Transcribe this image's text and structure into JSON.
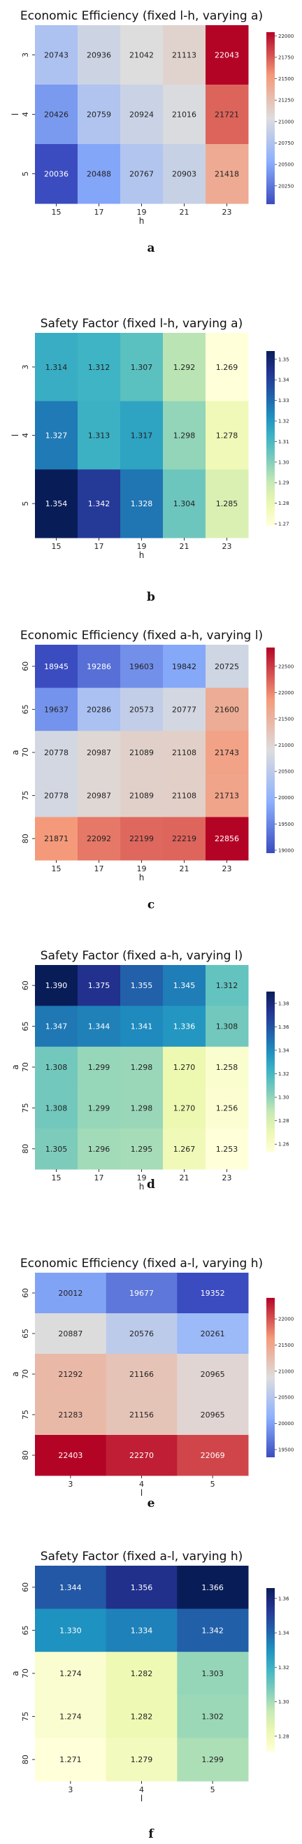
{
  "chart_data": [
    {
      "type": "heatmap",
      "title": "Economic Efficiency (fixed l-h, varying a)",
      "panel_label": "a",
      "xlabel": "h",
      "ylabel": "l",
      "x": [
        "15",
        "17",
        "19",
        "21",
        "23"
      ],
      "y": [
        "3",
        "4",
        "5"
      ],
      "values": [
        [
          20743,
          20936,
          21042,
          21113,
          22043
        ],
        [
          20426,
          20759,
          20924,
          21016,
          21721
        ],
        [
          20036,
          20488,
          20767,
          20903,
          21418
        ]
      ],
      "cmap": "coolwarm",
      "vmin": 20036,
      "vmax": 22043,
      "colorbar_ticks": [
        "20250",
        "20500",
        "20750",
        "21000",
        "21250",
        "21500",
        "21750",
        "22000"
      ],
      "colorbar_tick_values": [
        20250,
        20500,
        20750,
        21000,
        21250,
        21500,
        21750,
        22000
      ]
    },
    {
      "type": "heatmap",
      "title": "Safety Factor (fixed l-h, varying a)",
      "panel_label": "b",
      "xlabel": "h",
      "ylabel": "l",
      "x": [
        "15",
        "17",
        "19",
        "21",
        "23"
      ],
      "y": [
        "3",
        "4",
        "5"
      ],
      "values": [
        [
          1.314,
          1.312,
          1.307,
          1.292,
          1.269
        ],
        [
          1.327,
          1.313,
          1.317,
          1.298,
          1.278
        ],
        [
          1.354,
          1.342,
          1.328,
          1.304,
          1.285
        ]
      ],
      "cmap": "YlGnBu",
      "vmin": 1.269,
      "vmax": 1.354,
      "colorbar_ticks": [
        "1.27",
        "1.28",
        "1.29",
        "1.30",
        "1.31",
        "1.32",
        "1.33",
        "1.34",
        "1.35"
      ],
      "colorbar_tick_values": [
        1.27,
        1.28,
        1.29,
        1.3,
        1.31,
        1.32,
        1.33,
        1.34,
        1.35
      ]
    },
    {
      "type": "heatmap",
      "title": "Economic Efficiency (fixed a-h, varying l)",
      "panel_label": "c",
      "xlabel": "h",
      "ylabel": "a",
      "x": [
        "15",
        "17",
        "19",
        "21",
        "23"
      ],
      "y": [
        "60",
        "65",
        "70",
        "75",
        "80"
      ],
      "values": [
        [
          18945,
          19286,
          19603,
          19842,
          20725
        ],
        [
          19637,
          20286,
          20573,
          20777,
          21600
        ],
        [
          20778,
          20987,
          21089,
          21108,
          21743
        ],
        [
          20778,
          20987,
          21089,
          21108,
          21713
        ],
        [
          21871,
          22092,
          22199,
          22219,
          22856
        ]
      ],
      "cmap": "coolwarm",
      "vmin": 18945,
      "vmax": 22856,
      "colorbar_ticks": [
        "19000",
        "19500",
        "20000",
        "20500",
        "21000",
        "21500",
        "22000",
        "22500"
      ],
      "colorbar_tick_values": [
        19000,
        19500,
        20000,
        20500,
        21000,
        21500,
        22000,
        22500
      ]
    },
    {
      "type": "heatmap",
      "title": "Safety Factor (fixed a-h, varying l)",
      "panel_label": "d",
      "xlabel": "h",
      "ylabel": "a",
      "x": [
        "15",
        "17",
        "19",
        "21",
        "23"
      ],
      "y": [
        "60",
        "65",
        "70",
        "75",
        "80"
      ],
      "values": [
        [
          1.39,
          1.375,
          1.355,
          1.345,
          1.312
        ],
        [
          1.347,
          1.344,
          1.341,
          1.336,
          1.308
        ],
        [
          1.308,
          1.299,
          1.298,
          1.27,
          1.258
        ],
        [
          1.308,
          1.299,
          1.298,
          1.27,
          1.256
        ],
        [
          1.305,
          1.296,
          1.295,
          1.267,
          1.253
        ]
      ],
      "cmap": "YlGnBu",
      "vmin": 1.253,
      "vmax": 1.39,
      "colorbar_ticks": [
        "1.26",
        "1.28",
        "1.30",
        "1.32",
        "1.34",
        "1.36",
        "1.38"
      ],
      "colorbar_tick_values": [
        1.26,
        1.28,
        1.3,
        1.32,
        1.34,
        1.36,
        1.38
      ]
    },
    {
      "type": "heatmap",
      "title": "Economic Efficiency (fixed a-l, varying h)",
      "panel_label": "e",
      "xlabel": "l",
      "ylabel": "a",
      "x": [
        "3",
        "4",
        "5"
      ],
      "y": [
        "60",
        "65",
        "70",
        "75",
        "80"
      ],
      "values": [
        [
          20012,
          19677,
          19352
        ],
        [
          20887,
          20576,
          20261
        ],
        [
          21292,
          21166,
          20965
        ],
        [
          21283,
          21156,
          20965
        ],
        [
          22403,
          22270,
          22069
        ]
      ],
      "cmap": "coolwarm",
      "vmin": 19352,
      "vmax": 22403,
      "colorbar_ticks": [
        "19500",
        "20000",
        "20500",
        "21000",
        "21500",
        "22000"
      ],
      "colorbar_tick_values": [
        19500,
        20000,
        20500,
        21000,
        21500,
        22000
      ]
    },
    {
      "type": "heatmap",
      "title": "Safety Factor (fixed a-l, varying h)",
      "panel_label": "f",
      "xlabel": "l",
      "ylabel": "a",
      "x": [
        "3",
        "4",
        "5"
      ],
      "y": [
        "60",
        "65",
        "70",
        "75",
        "80"
      ],
      "values": [
        [
          1.344,
          1.356,
          1.366
        ],
        [
          1.33,
          1.334,
          1.342
        ],
        [
          1.274,
          1.282,
          1.303
        ],
        [
          1.274,
          1.282,
          1.302
        ],
        [
          1.271,
          1.279,
          1.299
        ]
      ],
      "cmap": "YlGnBu",
      "vmin": 1.271,
      "vmax": 1.366,
      "colorbar_ticks": [
        "1.28",
        "1.30",
        "1.32",
        "1.34",
        "1.36"
      ],
      "colorbar_tick_values": [
        1.28,
        1.3,
        1.32,
        1.34,
        1.36
      ]
    }
  ]
}
